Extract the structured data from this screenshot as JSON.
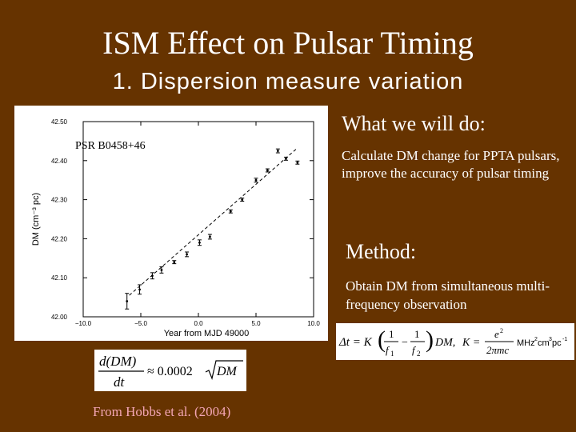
{
  "slide": {
    "title": "ISM Effect on Pulsar Timing",
    "subtitle": "1. Dispersion measure variation"
  },
  "what_we_will_do": {
    "heading": "What we will do:",
    "body": "Calculate DM change for PPTA pulsars, improve the accuracy of pulsar timing"
  },
  "method": {
    "heading": "Method:",
    "body": "Obtain DM from simultaneous multi-frequency observation"
  },
  "citation": "From Hobbs et al. (2004)",
  "formulas": {
    "delay": {
      "lhs": "Δt = K",
      "frac_f1_num": "1",
      "frac_f1_den": "f",
      "f1_sub": "1",
      "minus": "−",
      "frac_f2_num": "1",
      "frac_f2_den": "f",
      "f2_sub": "2",
      "dm": "DM,",
      "k_eq": "K =",
      "k_num": "e",
      "k_num_exp": "2",
      "k_den": "2πmc",
      "units": "MHz",
      "units_tail": "cm",
      "units_tail2": "pc",
      "units_exp1": "2",
      "units_exp2": "3",
      "units_exp3": "-1"
    },
    "rate": {
      "num": "d(DM)",
      "den": "dt",
      "rhs": "≈ 0.0002",
      "sqrt_arg": "DM"
    }
  },
  "colors": {
    "background": "#663300",
    "text": "#ffffff",
    "citation": "#f4a6b4"
  },
  "chart_data": {
    "type": "scatter",
    "annotation": "PSR B0458+46",
    "xlabel": "Year from MJD 49000",
    "ylabel": "DM (cm⁻³ pc)",
    "xlim": [
      -10.0,
      10.0
    ],
    "ylim": [
      42.0,
      42.5
    ],
    "x_ticks": [
      -10.0,
      -5.0,
      0.0,
      5.0,
      10.0
    ],
    "x_tick_labels": [
      "−10.0",
      "−5.0",
      "0.0",
      "5.0",
      "10.0"
    ],
    "y_ticks": [
      42.0,
      42.1,
      42.2,
      42.3,
      42.4,
      42.5
    ],
    "y_tick_labels": [
      "42.00",
      "42.10",
      "42.20",
      "42.30",
      "42.40",
      "42.50"
    ],
    "fit_line": {
      "x": [
        -6.0,
        8.5
      ],
      "y": [
        42.055,
        42.43
      ]
    },
    "points": [
      {
        "x": -6.2,
        "y": 42.04,
        "err": 0.02
      },
      {
        "x": -5.1,
        "y": 42.07,
        "err": 0.012
      },
      {
        "x": -4.0,
        "y": 42.105,
        "err": 0.008
      },
      {
        "x": -3.2,
        "y": 42.12,
        "err": 0.008
      },
      {
        "x": -2.1,
        "y": 42.14,
        "err": 0.004
      },
      {
        "x": -1.0,
        "y": 42.16,
        "err": 0.006
      },
      {
        "x": 0.1,
        "y": 42.19,
        "err": 0.007
      },
      {
        "x": 1.0,
        "y": 42.205,
        "err": 0.006
      },
      {
        "x": 2.8,
        "y": 42.27,
        "err": 0.004
      },
      {
        "x": 3.8,
        "y": 42.3,
        "err": 0.004
      },
      {
        "x": 5.0,
        "y": 42.35,
        "err": 0.005
      },
      {
        "x": 6.0,
        "y": 42.375,
        "err": 0.004
      },
      {
        "x": 6.9,
        "y": 42.425,
        "err": 0.005
      },
      {
        "x": 7.6,
        "y": 42.405,
        "err": 0.004
      },
      {
        "x": 8.6,
        "y": 42.395,
        "err": 0.004
      }
    ]
  }
}
